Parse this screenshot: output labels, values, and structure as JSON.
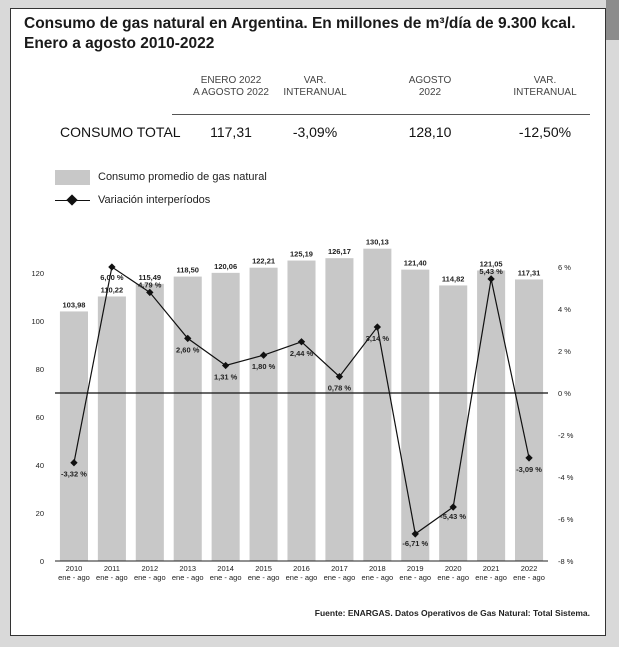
{
  "title": "Consumo de gas natural en Argentina. En millones de m³/día de 9.300 kcal. Enero a agosto 2010-2022",
  "summary": {
    "headers": [
      {
        "line1": "ENERO 2022",
        "line2": "A AGOSTO 2022"
      },
      {
        "line1": "VAR.",
        "line2": "INTERANUAL"
      },
      {
        "line1": "AGOSTO",
        "line2": "2022"
      },
      {
        "line1": "VAR.",
        "line2": "INTERANUAL"
      }
    ],
    "row_label": "CONSUMO TOTAL",
    "values": [
      "117,31",
      "-3,09%",
      "128,10",
      "-12,50%"
    ]
  },
  "legend": {
    "bars": "Consumo promedio de gas natural",
    "line": "Variación interperíodos"
  },
  "source": "Fuente: ENARGAS. Datos Operativos de Gas Natural: Total Sistema.",
  "chart_data": {
    "type": "bar",
    "categories": [
      "2010",
      "2011",
      "2012",
      "2013",
      "2014",
      "2015",
      "2016",
      "2017",
      "2018",
      "2019",
      "2020",
      "2021",
      "2022"
    ],
    "category_sublabel": "ene - ago",
    "series": [
      {
        "name": "Consumo promedio de gas natural",
        "type": "bar",
        "axis": "left",
        "values": [
          103.98,
          110.22,
          115.49,
          118.5,
          120.06,
          122.21,
          125.19,
          126.17,
          130.13,
          121.4,
          114.82,
          121.05,
          117.31
        ],
        "labels": [
          "103,98",
          "110,22",
          "115,49",
          "118,50",
          "120,06",
          "122,21",
          "125,19",
          "126,17",
          "130,13",
          "121,40",
          "114,82",
          "121,05",
          "117,31"
        ]
      },
      {
        "name": "Variación interperíodos",
        "type": "line",
        "axis": "right",
        "values": [
          -3.32,
          6.0,
          4.79,
          2.6,
          1.31,
          1.8,
          2.44,
          0.78,
          3.14,
          -6.71,
          -5.43,
          5.43,
          -3.09
        ],
        "labels": [
          "-3,32 %",
          "6,00 %",
          "4,79 %",
          "2,60 %",
          "1,31 %",
          "1,80 %",
          "2,44 %",
          "0,78 %",
          "3,14 %",
          "-6,71 %",
          "-5,43 %",
          "5,43 %",
          "-3,09 %"
        ]
      }
    ],
    "ylim_left": [
      0,
      140
    ],
    "yticks_left": [
      "0",
      "20",
      "40",
      "60",
      "80",
      "100",
      "120"
    ],
    "ylim_right": [
      -8,
      8
    ],
    "yticks_right": [
      "-8 %",
      "-6 %",
      "-4 %",
      "-2 %",
      "0 %",
      "2 %",
      "4 %",
      "6 %"
    ],
    "grid": false,
    "colors": {
      "bar": "#c8c8c8",
      "line": "#111111",
      "zero_line": "#111111"
    }
  }
}
